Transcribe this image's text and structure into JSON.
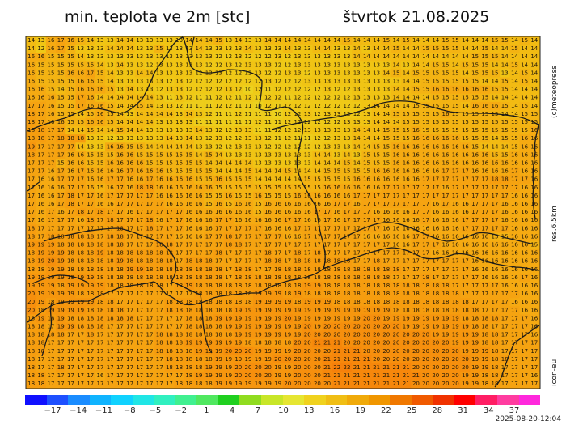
{
  "title_left": "min. teplota ve 2m [stc]",
  "title_right": "štvrtok 21.08.2025",
  "side_labels": {
    "copyright": "(c)meteopress",
    "resolution": "res.6.5km",
    "model": "icon-eu"
  },
  "timestamp": "2025-08-20-12:04",
  "colorbar": {
    "colors": [
      "#1010ff",
      "#1e50ff",
      "#1a8cff",
      "#10b4ff",
      "#10d2ff",
      "#20e6e6",
      "#30f0c0",
      "#40f090",
      "#50e860",
      "#20d020",
      "#90dc20",
      "#c8e628",
      "#e6e632",
      "#f0d21e",
      "#f0be14",
      "#f0aa0a",
      "#f09600",
      "#f07800",
      "#f05a00",
      "#f03200",
      "#ff0000",
      "#ff1e64",
      "#ff3ca0",
      "#ff28dc"
    ],
    "tick_labels": [
      "−17",
      "−14",
      "−11",
      "−8",
      "−5",
      "−2",
      "1",
      "4",
      "7",
      "10",
      "13",
      "16",
      "19",
      "22",
      "25",
      "28",
      "31",
      "34",
      "37"
    ]
  },
  "map": {
    "rows": [
      "14 13 16 17 16 15 14 13 13 14 14 13 13 13 13 13 14 14 14 15 13 14 13 13 14 14 14 14 14 14 14 14 15 14 14 14 15 14 15 14 14 14 15 15 14 14 14 15 15 14 15 14",
      "14 12 16 17 15 13 13 13 14 14 14 13 13 15 13 13 13 14 13 13 13 13 14 13 13 13 14 13 13 14 14 13 13 14 13 14 14 15 14 14 15 15 15 15 14 14 15 14 14 15 14 14",
      "16 16 15 15 15 14 13 13 13 13 13 13 13 13 13 13 13 13 13 12 12 13 12 12 12 13 12 13 13 13 13 13 13 14 14 14 14 14 14 14 14 14 14 14 14 15 15 15 14 14 14 14",
      "16 15 15 15 15 15 15 14 13 14 13 13 12 13 13 13 13 13 12 12 13 12 13 13 13 12 12 13 13 13 13 13 13 13 13 13 13 14 13 14 14 15 15 14 15 15 15 14 14 15 14 14",
      "16 15 15 15 16 16 17 15 14 13 13 14 14 13 13 13 13 12 13 13 12 12 12 13 12 12 13 13 12 13 13 13 13 13 13 13 14 15 14 15 15 15 15 15 14 15 15 15 13 14 15 14",
      "16 15 15 15 15 16 16 15 14 13 13 13 13 13 12 13 12 12 12 12 12 12 12 12 13 12 12 12 13 13 13 13 13 13 13 13 13 13 14 14 15 15 15 15 15 15 14 14 15 14 15 14",
      "16 16 15 14 15 16 16 16 15 13 14 13 13 12 13 13 12 12 12 12 13 12 10 12 11 12 12 12 12 12 13 12 12 13 13 13 13 14 14 15 15 16 16 16 16 16 16 15 15 14 14 14",
      "16 16 16 15 15 17 16 14 14 14 14 14 14 13 11 13 12 11 11 12 12 11 12 11 12 12 11 12 12 12 12 12 12 13 13 13 13 14 14 14 14 15 15 15 15 15 15 14 14 14 14 14",
      "17 17 16 15 15 17 16 16 15 14 14 15 14 13 13 12 11 11 11 12 12 11 11 10 12 11 12 12 12 12 12 12 12 12 13 14 14 14 14 15 15 15 15 15 14 16 16 16 15 14 15 14",
      "18 17 16 15 15 14 15 16 15 14 13 14 14 14 14 13 14 13 12 11 11 12 11 11 11 10 12 12 13 12 13 13 12 12 13 14 14 15 15 15 15 15 16 15 15 15 15 15 14 14 15 15",
      "18 17 16 16 15 15 16 16 15 14 14 14 14 13 13 13 13 11 11 11 11 11 11 12 11 11 12 12 12 12 12 12 13 13 13 14 14 14 15 15 15 15 15 15 15 15 15 15 15 15 15 15",
      "18 18 17 17 14 14 15 14 14 15 14 14 13 13 13 13 13 14 13 12 12 13 13 11 11 12 12 12 13 13 13 13 13 14 14 14 15 15 15 16 15 15 15 15 15 15 15 15 15 15 15 16",
      "18 18 17 18 18 18 13 13 12 13 13 13 13 13 14 13 14 13 12 13 12 12 13 13 12 11 12 11 11 12 12 13 13 14 14 14 15 15 15 16 16 16 16 16 15 15 15 14 15 15 16 16",
      "19 17 17 17 17 14 13 13 16 16 15 15 14 14 14 14 14 13 13 12 12 13 13 13 12 12 12 12 12 12 13 13 13 14 14 15 15 16 16 16 16 16 16 16 16 15 14 14 14 15 16 16",
      "18 17 17 17 16 16 15 15 15 16 16 15 15 15 15 15 15 14 15 14 13 13 13 13 13 13 13 13 13 14 14 13 14 13 15 15 15 16 16 16 16 16 16 16 16 16 16 15 15 16 16 16",
      "17 17 17 15 16 16 15 15 16 16 16 16 15 15 15 15 15 15 14 14 14 14 14 13 13 13 13 13 13 14 14 14 15 14 15 15 15 16 16 16 16 16 16 16 16 16 16 16 16 16 16 16",
      "17 17 16 17 16 17 16 16 16 16 17 16 16 16 15 15 15 15 15 14 14 14 15 14 14 14 15 14 14 14 15 15 15 15 15 16 16 16 16 16 16 16 17 17 17 16 16 16 16 17 16 16",
      "17 16 16 17 17 17 16 16 17 17 16 16 17 16 16 16 16 15 15 16 15 15 15 14 14 14 14 14 15 15 15 15 15 16 16 16 16 16 16 16 17 17 17 17 17 17 17 18 18 17 17 16",
      "17 16 16 16 17 17 16 15 16 17 16 18 18 16 16 16 16 16 16 15 15 15 15 15 15 15 15 15 15 15 16 16 16 16 16 16 17 17 17 17 17 17 16 17 17 17 17 17 17 17 16 16",
      "17 16 16 17 18 17 17 16 17 17 17 17 17 16 16 16 16 16 15 15 16 15 15 16 15 15 15 16 16 16 16 16 16 17 17 17 17 17 17 17 17 17 17 17 17 17 17 17 17 16 16 16",
      "17 16 16 17 18 17 17 16 16 17 17 17 17 17 16 16 16 16 15 16 15 16 16 15 16 16 16 16 16 16 16 17 17 16 17 17 17 17 17 17 17 16 17 16 16 17 17 17 16 16 16 16",
      "17 16 17 16 17 18 17 18 17 17 16 17 17 17 17 17 16 16 16 16 16 16 16 15 16 16 16 16 16 17 17 16 17 17 17 16 16 16 16 17 17 16 16 16 16 17 17 17 16 16 16 16",
      "17 16 17 17 17 16 18 17 18 17 17 17 18 16 17 17 16 16 16 17 17 16 16 16 16 16 17 17 16 16 17 16 17 17 17 17 16 16 16 16 17 16 16 16 17 17 17 17 16 16 16 16",
      "18 17 17 17 17 17 17 17 17 18 17 17 18 17 17 17 16 16 16 17 17 17 17 17 16 16 16 17 17 17 17 17 17 17 17 17 16 16 16 16 16 16 16 16 17 17 17 17 17 16 16 16",
      "18 17 18 18 18 18 18 17 18 18 17 17 17 17 17 16 16 16 17 17 18 17 17 17 17 17 16 16 17 17 17 17 17 17 16 16 16 16 16 17 17 16 16 16 16 16 16 15 15 16 16 16",
      "19 19 19 18 18 18 18 18 18 18 17 17 17 18 18 17 17 17 17 17 18 18 17 17 17 17 17 17 17 17 17 17 17 17 17 17 17 16 16 17 17 17 16 16 16 16 16 16 16 16 16 15",
      "18 19 19 19 18 18 18 19 18 18 18 18 18 18 18 17 17 17 17 18 17 17 17 17 18 17 17 18 17 18 17 17 17 17 17 17 17 17 17 17 17 16 16 16 16 16 16 16 16 16 16 16",
      "18 19 20 19 18 18 18 18 18 19 18 18 18 18 18 17 18 18 18 17 17 17 17 17 18 18 17 18 18 18 18 18 18 17 17 18 17 17 17 17 17 17 17 17 17 16 16 16 16 16 16 16",
      "18 18 19 19 18 18 18 18 18 18 19 19 18 18 18 18 18 18 18 18 17 18 18 17 17 18 18 18 18 18 18 18 18 18 18 18 18 18 17 17 17 17 17 17 17 16 16 16 16 16 16 16",
      "19 19 19 19 19 19 19 18 18 18 18 18 18 18 18 18 18 18 18 18 17 18 18 18 18 18 18 18 18 18 18 18 18 18 18 18 18 17 17 17 18 17 17 17 17 17 16 16 16 16 17 16",
      "19 19 19 18 19 19 19 19 18 18 18 18 18 18 17 18 19 18 18 18 18 18 18 18 18 18 18 18 19 19 18 18 18 18 18 18 18 18 18 18 18 18 18 17 17 17 17 17 16 16 16 16",
      "20 19 19 19 19 18 18 18 17 17 17 17 17 17 17 17 17 18 18 18 18 18 18 19 19 19 18 19 18 18 18 18 18 18 18 18 18 18 18 18 18 18 18 18 17 17 17 17 17 17 16 16",
      "20 19 18 19 19 19 19 18 18 17 17 17 17 17 18 18 18 18 18 18 18 18 18 19 19 19 19 18 19 19 19 18 18 18 18 18 18 18 18 18 18 18 18 18 18 17 17 17 17 16 16 16",
      "20 18 19 19 19 19 18 18 18 18 17 17 17 17 18 18 18 18 18 18 18 19 19 19 19 19 19 19 19 19 19 19 19 19 19 19 19 18 18 18 18 18 18 18 18 18 17 17 17 17 16 16",
      "18 19 18 19 18 18 18 18 18 18 18 17 17 17 17 17 18 18 18 19 19 19 19 19 19 19 20 19 19 19 19 19 19 19 20 20 19 19 19 19 19 19 19 19 18 18 18 18 17 17 17 16",
      "18 18 17 19 19 18 18 18 17 17 17 17 17 17 17 17 18 18 18 18 19 19 19 19 19 19 19 19 20 19 20 20 20 20 20 20 20 20 19 19 19 19 19 19 19 18 18 17 17 17 17 16",
      "18 18 18 18 17 17 18 17 17 17 17 17 17 18 18 18 18 18 18 18 18 19 19 19 19 19 19 19 20 20 20 20 20 20 20 20 20 20 20 20 20 19 19 19 19 19 18 18 17 17 17 16",
      "18 18 17 17 17 17 17 17 17 17 17 17 17 18 18 18 19 19 19 19 19 19 18 18 18 18 18 20 20 21 21 21 20 20 20 20 20 20 20 20 20 20 20 19 19 19 18 18 17 17 17 17",
      "18 18 17 17 17 17 17 17 17 17 17 17 17 18 18 18 18 19 19 19 20 20 20 19 19 19 19 20 20 20 20 21 21 21 20 20 20 20 20 20 20 20 20 20 19 19 19 18 17 17 17 17",
      "18 17 17 17 17 17 17 17 17 17 17 17 17 17 18 18 18 18 18 19 19 19 19 19 19 20 20 20 20 20 21 21 21 21 21 20 20 20 20 20 20 20 20 20 20 19 19 18 18 17 17 17",
      "18 17 17 18 17 17 17 17 17 17 17 17 17 17 18 18 18 18 19 19 19 20 20 20 20 19 19 20 20 20 21 22 22 21 21 21 21 21 21 20 20 20 20 20 20 19 19 18 17 17 17 17",
      "18 18 17 17 17 17 17 16 17 17 17 17 17 17 17 17 18 19 19 19 19 20 20 20 20 19 19 20 20 20 21 21 21 21 21 21 21 21 21 21 20 20 20 20 19 19 18 18 17 17 17 16",
      "18 18 17 17 17 17 17 17 17 17 17 17 17 17 17 18 18 18 18 19 19 19 19 19 19 19 20 20 20 20 20 21 21 21 21 21 21 21 21 20 20 20 20 20 19 19 18 18 17 17 17 17"
    ]
  }
}
